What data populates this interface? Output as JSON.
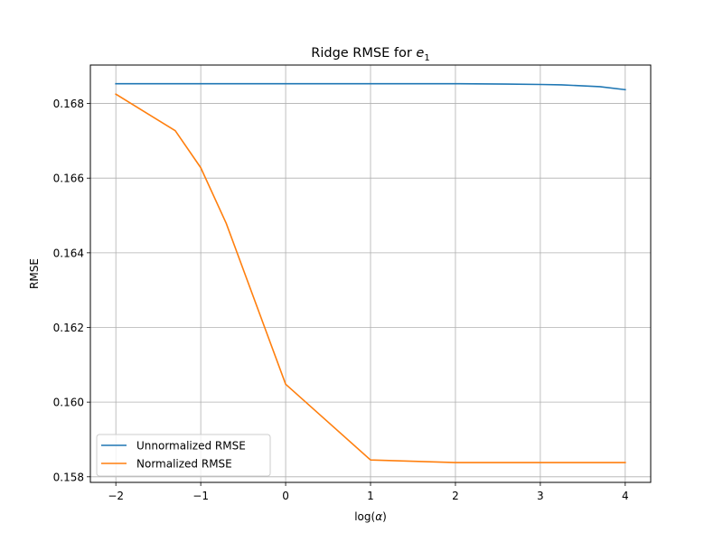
{
  "chart_data": {
    "type": "line",
    "title": "Ridge RMSE for ",
    "title_math": "e",
    "title_math_subscript": "1",
    "xlabel_prefix": "log(",
    "xlabel_symbol": "α",
    "xlabel_suffix": ")",
    "ylabel": "RMSE",
    "xlim": [
      -2.3,
      4.3
    ],
    "ylim": [
      0.15785,
      0.16903
    ],
    "xticks": [
      -2,
      -1,
      0,
      1,
      2,
      3,
      4
    ],
    "xtick_labels": [
      "−2",
      "−1",
      "0",
      "1",
      "2",
      "3",
      "4"
    ],
    "yticks": [
      0.158,
      0.16,
      0.162,
      0.164,
      0.166,
      0.168
    ],
    "ytick_labels": [
      "0.158",
      "0.160",
      "0.162",
      "0.164",
      "0.166",
      "0.168"
    ],
    "grid": true,
    "legend_position": "lower-left",
    "series": [
      {
        "name": "Unnormalized RMSE",
        "color": "#1f77b4",
        "x": [
          -2,
          -1.3,
          -1,
          -0.7,
          0,
          1,
          2,
          2.6,
          3,
          3.25,
          3.7,
          4
        ],
        "y": [
          0.16853,
          0.16853,
          0.16853,
          0.16853,
          0.16853,
          0.16853,
          0.16853,
          0.16852,
          0.16851,
          0.1685,
          0.16845,
          0.16837
        ]
      },
      {
        "name": "Normalized RMSE",
        "color": "#ff7f0e",
        "x": [
          -2,
          -1.3,
          -1,
          -0.7,
          0,
          1,
          2,
          3,
          4
        ],
        "y": [
          0.16825,
          0.16727,
          0.16628,
          0.16479,
          0.16048,
          0.15845,
          0.15838,
          0.15838,
          0.15838
        ]
      }
    ]
  }
}
